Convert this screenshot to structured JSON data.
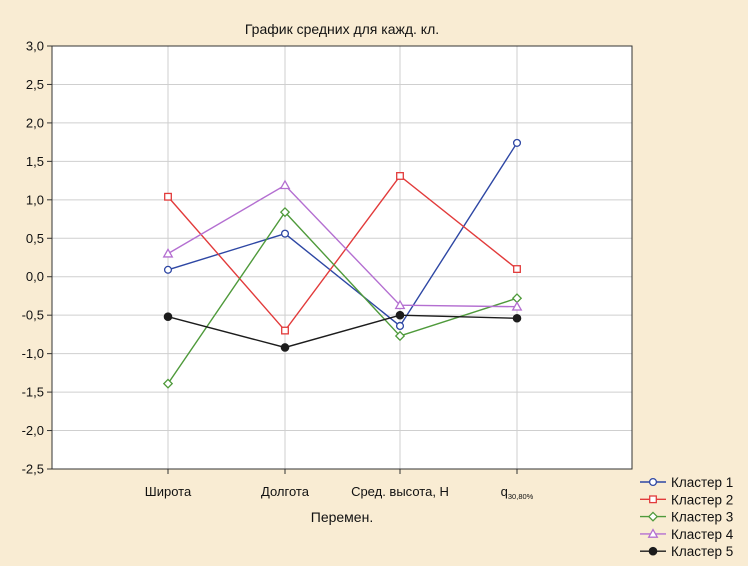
{
  "chart_data": {
    "type": "line",
    "title": "График средних для кажд. кл.",
    "xlabel": "Перемен.",
    "ylabel": "",
    "categories": [
      "Широта",
      "Долгота",
      "Сред. высота, Н",
      "q30,80%"
    ],
    "category_main": [
      "Широта",
      "Долгота",
      "Сред. высота, Н",
      "q"
    ],
    "category_sub": [
      "",
      "",
      "",
      "30,80%"
    ],
    "ylim": [
      -2.5,
      3.0
    ],
    "yticks": [
      3.0,
      2.5,
      2.0,
      1.5,
      1.0,
      0.5,
      0.0,
      -0.5,
      -1.0,
      -1.5,
      -2.0,
      -2.5
    ],
    "ytick_labels": [
      "3,0",
      "2,5",
      "2,0",
      "1,5",
      "1,0",
      "0,5",
      "0,0",
      "-0,5",
      "-1,0",
      "-1,5",
      "-2,0",
      "-2,5"
    ],
    "grid": true,
    "legend_position": "bottom-right",
    "series": [
      {
        "name": "Кластер  1",
        "marker": "circle-open",
        "color": "#2e47a4",
        "values": [
          0.09,
          0.56,
          -0.64,
          1.74
        ]
      },
      {
        "name": "Кластер  2",
        "marker": "square-open",
        "color": "#e23b3b",
        "values": [
          1.04,
          -0.7,
          1.31,
          0.1
        ]
      },
      {
        "name": "Кластер  3",
        "marker": "diamond-open",
        "color": "#4f9a3b",
        "values": [
          -1.39,
          0.84,
          -0.77,
          -0.28
        ]
      },
      {
        "name": "Кластер  4",
        "marker": "triangle-open",
        "color": "#b46fd1",
        "values": [
          0.3,
          1.19,
          -0.37,
          -0.39
        ]
      },
      {
        "name": "Кластер  5",
        "marker": "circle-filled",
        "color": "#1c1c1c",
        "values": [
          -0.52,
          -0.92,
          -0.5,
          -0.54
        ]
      }
    ]
  }
}
